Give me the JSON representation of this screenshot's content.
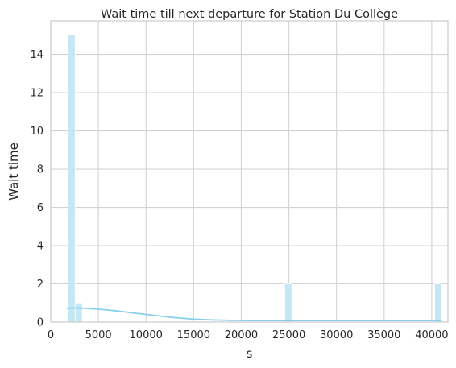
{
  "chart_data": {
    "type": "bar",
    "subtype": "histogram-with-kde",
    "title": "Wait time till next departure for Station Du Collège",
    "xlabel": "s",
    "ylabel": "Wait time",
    "xlim": [
      0,
      41700
    ],
    "ylim": [
      0,
      15.75
    ],
    "xticks": [
      0,
      5000,
      10000,
      15000,
      20000,
      25000,
      30000,
      35000,
      40000
    ],
    "yticks": [
      0,
      2,
      4,
      6,
      8,
      10,
      12,
      14
    ],
    "grid": true,
    "bins": [
      {
        "x0": 1810,
        "x1": 2560,
        "count": 15
      },
      {
        "x0": 2560,
        "x1": 3310,
        "count": 1
      },
      {
        "x0": 24560,
        "x1": 25310,
        "count": 2
      },
      {
        "x0": 40300,
        "x1": 41050,
        "count": 2
      }
    ],
    "kde": {
      "x": [
        1700,
        3000,
        5000,
        7000,
        9000,
        11000,
        13000,
        15000,
        17000,
        19000,
        21000,
        23000,
        25000,
        27000,
        29000,
        31000,
        33000,
        35000,
        37000,
        39000,
        41000
      ],
      "y": [
        0.72,
        0.74,
        0.68,
        0.58,
        0.46,
        0.34,
        0.23,
        0.15,
        0.11,
        0.09,
        0.08,
        0.08,
        0.08,
        0.08,
        0.08,
        0.08,
        0.08,
        0.08,
        0.08,
        0.08,
        0.08
      ]
    },
    "colors": {
      "bar_fill": "#c5e6f4",
      "bar_stroke": "#ffffff",
      "kde_line": "#87ceeb",
      "grid": "#d3d3d3",
      "frame": "#cccccc",
      "text": "#262626"
    }
  }
}
